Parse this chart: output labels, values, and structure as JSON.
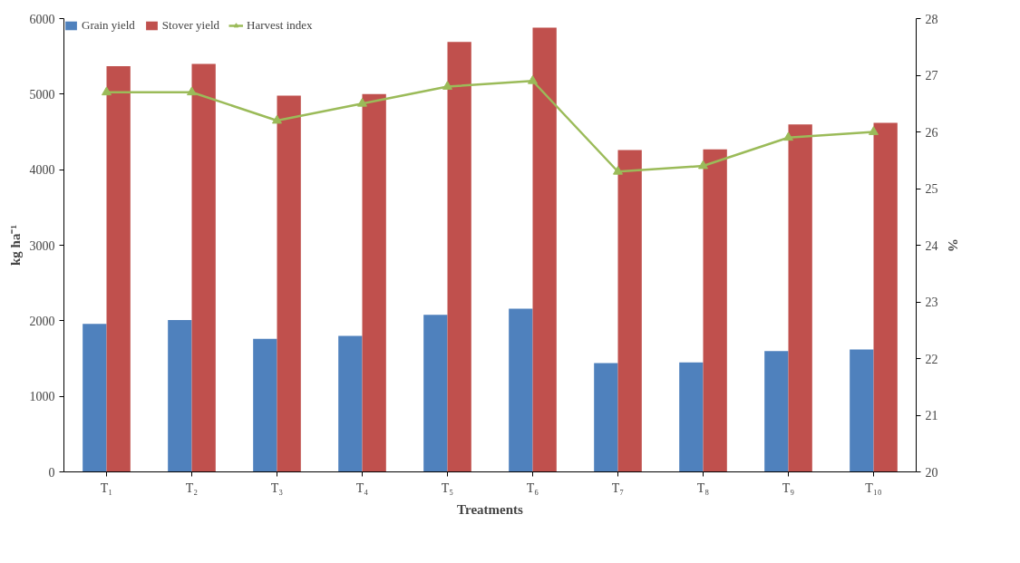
{
  "chart_data": {
    "type": "bar",
    "xlabel": "Treatments",
    "ylabel": "kg ha⁻¹",
    "y2label": "%",
    "categories": [
      "T₁",
      "T₂",
      "T₃",
      "T₄",
      "T₅",
      "T₆",
      "T₇",
      "T₈",
      "T₉",
      "T₁₀"
    ],
    "series": [
      {
        "name": "Grain yield",
        "color": "#4f81bd",
        "values": [
          1960,
          2010,
          1760,
          1800,
          2080,
          2160,
          1440,
          1450,
          1600,
          1620
        ]
      },
      {
        "name": "Stover yield",
        "color": "#c0504d",
        "values": [
          5370,
          5400,
          4980,
          5000,
          5690,
          5880,
          4260,
          4270,
          4600,
          4620
        ]
      },
      {
        "name": "Harvest index",
        "type": "line",
        "axis": "y2",
        "color": "#9bbb59",
        "marker": "triangle",
        "values": [
          26.7,
          26.7,
          26.2,
          26.5,
          26.8,
          26.9,
          25.3,
          25.4,
          25.9,
          26.0
        ]
      }
    ],
    "ylim": [
      0,
      6000
    ],
    "yticks": [
      0,
      1000,
      2000,
      3000,
      4000,
      5000,
      6000
    ],
    "y2lim": [
      20,
      28
    ],
    "y2ticks": [
      20,
      21,
      22,
      23,
      24,
      25,
      26,
      27,
      28
    ],
    "grid": false,
    "legend": "top"
  }
}
